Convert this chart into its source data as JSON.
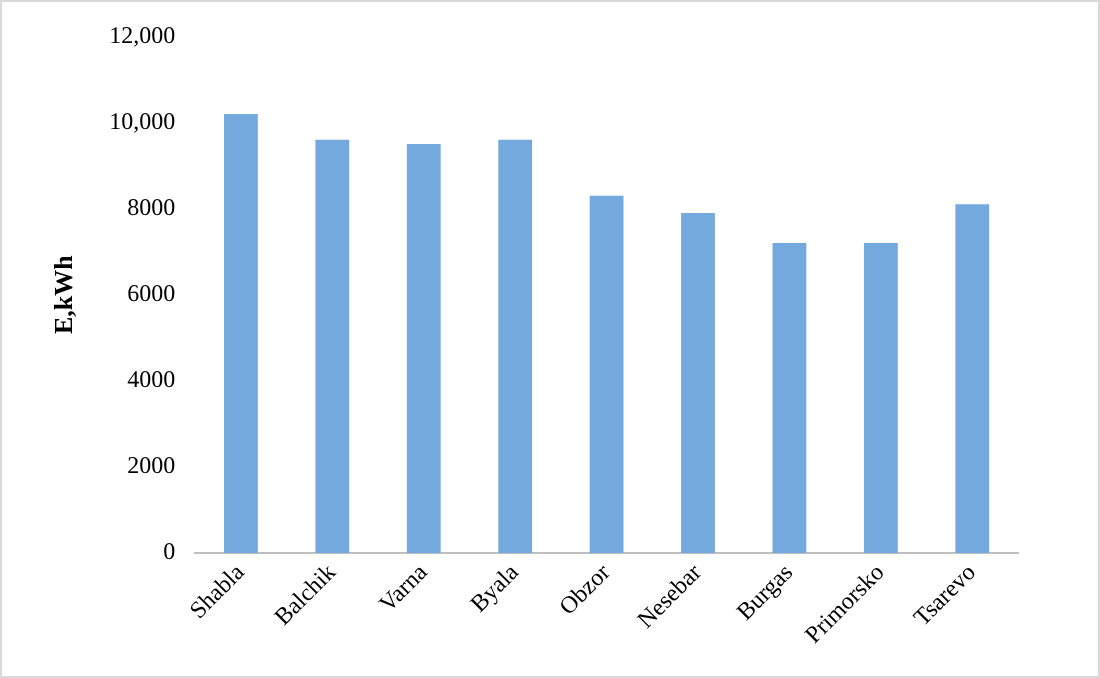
{
  "chart_data": {
    "type": "bar",
    "ylabel": "E,kWh",
    "categories": [
      "Shabla",
      "Balchik",
      "Varna",
      "Byala",
      "Obzor",
      "Nesebar",
      "Burgas",
      "Primorsko",
      "Tsarevo"
    ],
    "values": [
      10200,
      9600,
      9500,
      9600,
      8300,
      7900,
      7200,
      7200,
      8100
    ],
    "color": "#74a9dd",
    "ylim": [
      0,
      12000
    ],
    "yticks": [
      0,
      2000,
      4000,
      6000,
      8000,
      {
        "value": 10000,
        "label": "10,000"
      },
      {
        "value": 12000,
        "label": "12,000"
      }
    ],
    "grid": false,
    "legend": false
  }
}
